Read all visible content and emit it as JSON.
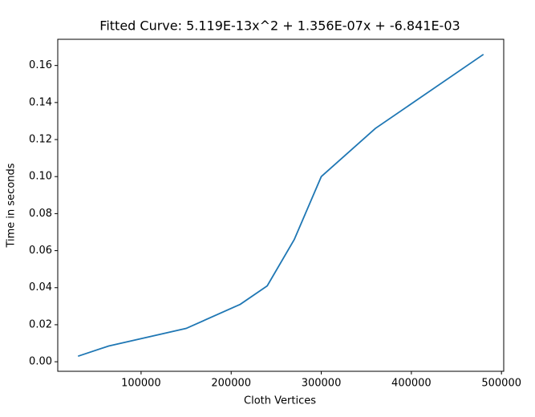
{
  "chart_data": {
    "type": "line",
    "title": "Fitted Curve: 5.119E-13x^2 + 1.356E-07x + -6.841E-03",
    "x_label": "Cloth Vertices",
    "y_label": "Time in seconds",
    "x": [
      30000,
      64000,
      150000,
      210000,
      240000,
      270000,
      300000,
      360000,
      480000
    ],
    "series": [
      {
        "name": "Time",
        "color": "#1f77b4",
        "values": [
          0.003,
          0.0085,
          0.018,
          0.031,
          0.041,
          0.066,
          0.1,
          0.126,
          0.166
        ]
      }
    ],
    "xlim": [
      7500,
      502500
    ],
    "ylim": [
      -0.00515,
      0.17415
    ],
    "xticks": [
      100000,
      200000,
      300000,
      400000,
      500000
    ],
    "yticks": [
      {
        "value": 0,
        "label": "0.00"
      },
      {
        "value": 0.02,
        "label": "0.02"
      },
      {
        "value": 0.04,
        "label": "0.04"
      },
      {
        "value": 0.06,
        "label": "0.06"
      },
      {
        "value": 0.08,
        "label": "0.08"
      },
      {
        "value": 0.1,
        "label": "0.10"
      },
      {
        "value": 0.12,
        "label": "0.12"
      },
      {
        "value": 0.14,
        "label": "0.14"
      },
      {
        "value": 0.16,
        "label": "0.16"
      }
    ]
  }
}
